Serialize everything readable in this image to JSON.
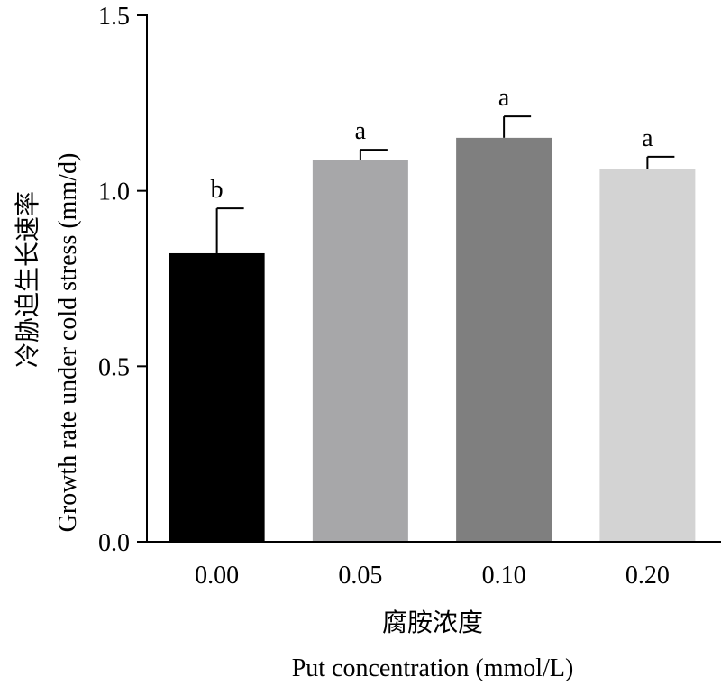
{
  "chart_data": {
    "type": "bar",
    "categories": [
      "0.00",
      "0.05",
      "0.10",
      "0.20"
    ],
    "values": [
      0.822,
      1.087,
      1.151,
      1.061
    ],
    "errors": [
      0.128,
      0.03,
      0.061,
      0.036
    ],
    "significance": [
      "b",
      "a",
      "a",
      "a"
    ],
    "colors": [
      "#000000",
      "#a7a7a9",
      "#7f7f7f",
      "#d3d3d3"
    ],
    "ylim": [
      0,
      1.5
    ],
    "yticks": [
      "0.0",
      "0.5",
      "1.0",
      "1.5"
    ],
    "ytick_values": [
      0,
      0.5,
      1.0,
      1.5
    ],
    "xlabel_cn": "腐胺浓度",
    "xlabel": "Put concentration (mmol/L)",
    "ylabel_cn": "冷胁迫生长速率",
    "ylabel": "Growth rate under cold stress (mm/d)",
    "grid": false
  }
}
